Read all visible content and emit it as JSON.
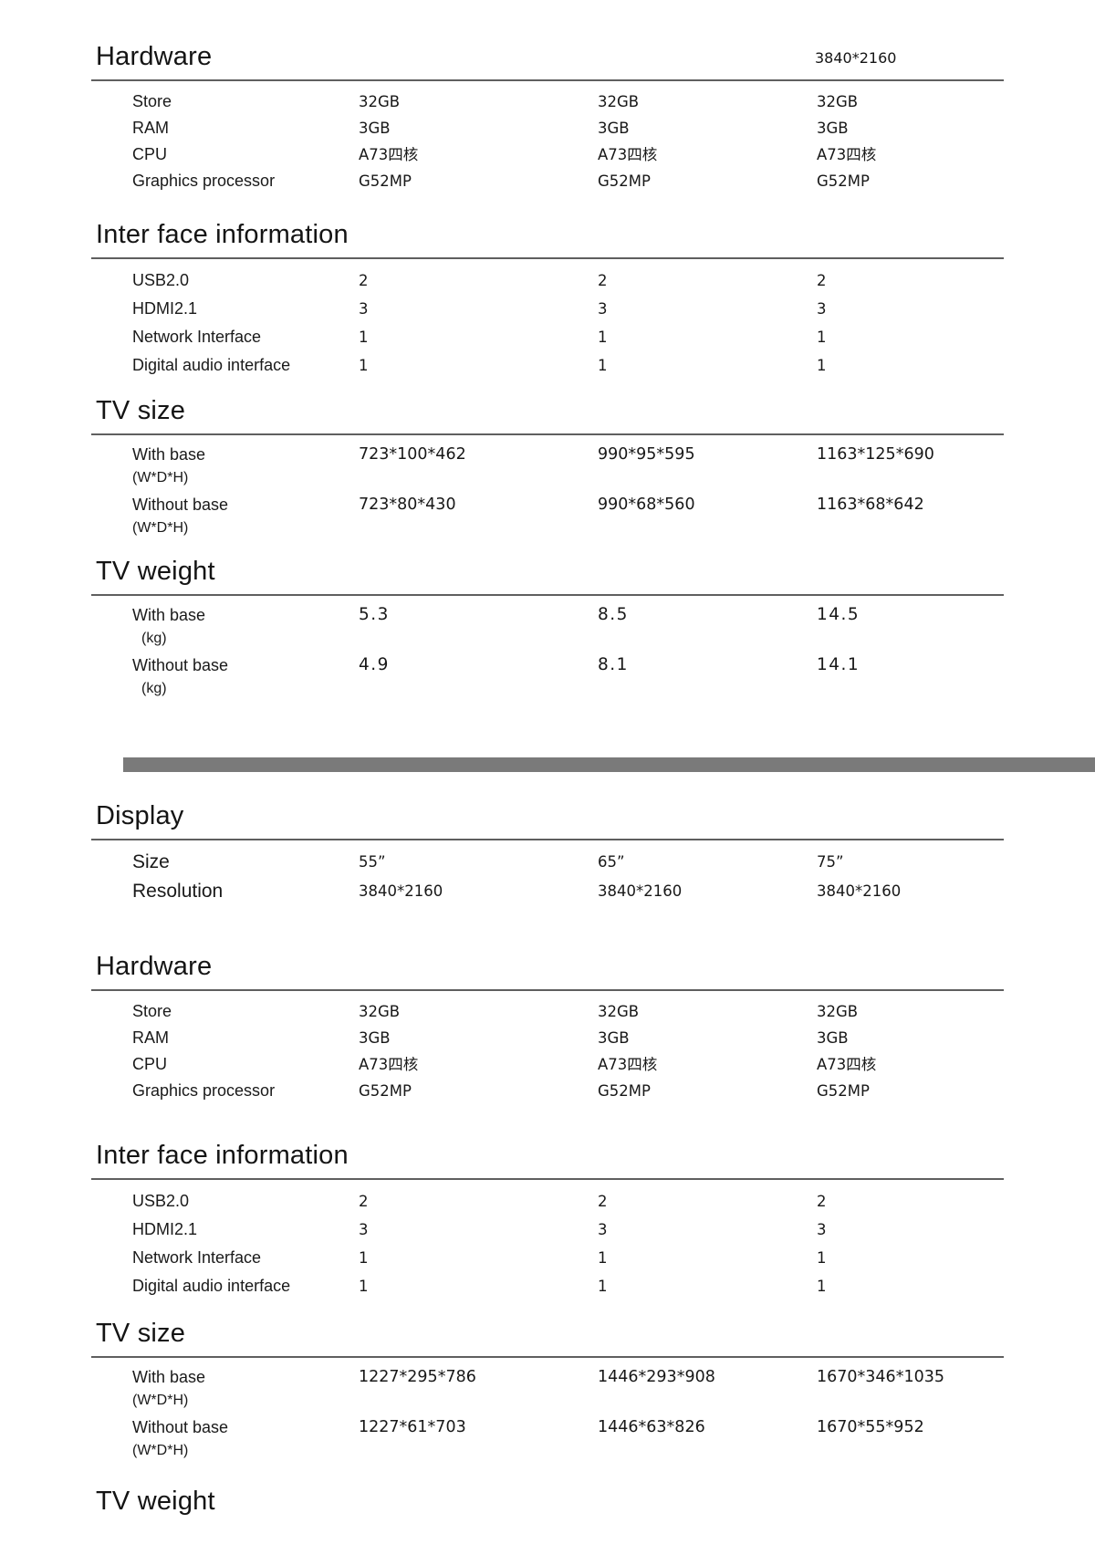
{
  "page_note": "3840*2160",
  "colors": {
    "text": "#1a1a1a",
    "section_rule": "#5f5f5f",
    "divider_bar": "#7a7a7a",
    "background": "#ffffff"
  },
  "pages": [
    {
      "sections": [
        {
          "title": "Hardware",
          "rows": [
            {
              "label": "Store",
              "values": [
                "32GB",
                "32GB",
                "32GB"
              ]
            },
            {
              "label": "RAM",
              "values": [
                "3GB",
                "3GB",
                "3GB"
              ]
            },
            {
              "label": "CPU",
              "values": [
                "A73四核",
                "A73四核",
                "A73四核"
              ]
            },
            {
              "label": "Graphics processor",
              "values": [
                "G52MP",
                "G52MP",
                "G52MP"
              ]
            }
          ]
        },
        {
          "title": "Inter face information",
          "rows": [
            {
              "label": "USB2.0",
              "values": [
                "2",
                "2",
                "2"
              ]
            },
            {
              "label": "HDMI2.1",
              "values": [
                "3",
                "3",
                "3"
              ]
            },
            {
              "label": "Network Interface",
              "values": [
                "1",
                "1",
                "1"
              ]
            },
            {
              "label": "Digital audio interface",
              "values": [
                "1",
                "1",
                "1"
              ]
            }
          ]
        },
        {
          "title": "TV size",
          "rows": [
            {
              "label": "With base",
              "sublabel": "(W*D*H)",
              "values": [
                "723*100*462",
                "990*95*595",
                "1163*125*690"
              ]
            },
            {
              "label": "Without base",
              "sublabel": "(W*D*H)",
              "values": [
                "723*80*430",
                "990*68*560",
                "1163*68*642"
              ]
            }
          ]
        },
        {
          "title": "TV weight",
          "rows": [
            {
              "label": "With base",
              "sublabel": "(kg)",
              "values": [
                "5.3",
                "8.5",
                "14.5"
              ]
            },
            {
              "label": "Without base",
              "sublabel": "(kg)",
              "values": [
                "4.9",
                "8.1",
                "14.1"
              ]
            }
          ]
        }
      ]
    },
    {
      "sections": [
        {
          "title": "Display",
          "rows": [
            {
              "label": "Size",
              "values": [
                "55”",
                "65”",
                "75”"
              ]
            },
            {
              "label": "Resolution",
              "values": [
                "3840*2160",
                "3840*2160",
                "3840*2160"
              ]
            }
          ]
        },
        {
          "title": "Hardware",
          "rows": [
            {
              "label": "Store",
              "values": [
                "32GB",
                "32GB",
                "32GB"
              ]
            },
            {
              "label": "RAM",
              "values": [
                "3GB",
                "3GB",
                "3GB"
              ]
            },
            {
              "label": "CPU",
              "values": [
                "A73四核",
                "A73四核",
                "A73四核"
              ]
            },
            {
              "label": "Graphics processor",
              "values": [
                "G52MP",
                "G52MP",
                "G52MP"
              ]
            }
          ]
        },
        {
          "title": "Inter face information",
          "rows": [
            {
              "label": "USB2.0",
              "values": [
                "2",
                "2",
                "2"
              ]
            },
            {
              "label": "HDMI2.1",
              "values": [
                "3",
                "3",
                "3"
              ]
            },
            {
              "label": "Network Interface",
              "values": [
                "1",
                "1",
                "1"
              ]
            },
            {
              "label": "Digital audio interface",
              "values": [
                "1",
                "1",
                "1"
              ]
            }
          ]
        },
        {
          "title": "TV size",
          "rows": [
            {
              "label": "With base",
              "sublabel": "(W*D*H)",
              "values": [
                "1227*295*786",
                "1446*293*908",
                "1670*346*1035"
              ]
            },
            {
              "label": "Without base",
              "sublabel": "(W*D*H)",
              "values": [
                "1227*61*703",
                "1446*63*826",
                "1670*55*952"
              ]
            }
          ]
        },
        {
          "title": "TV weight",
          "partial": true,
          "rows": []
        }
      ]
    }
  ]
}
